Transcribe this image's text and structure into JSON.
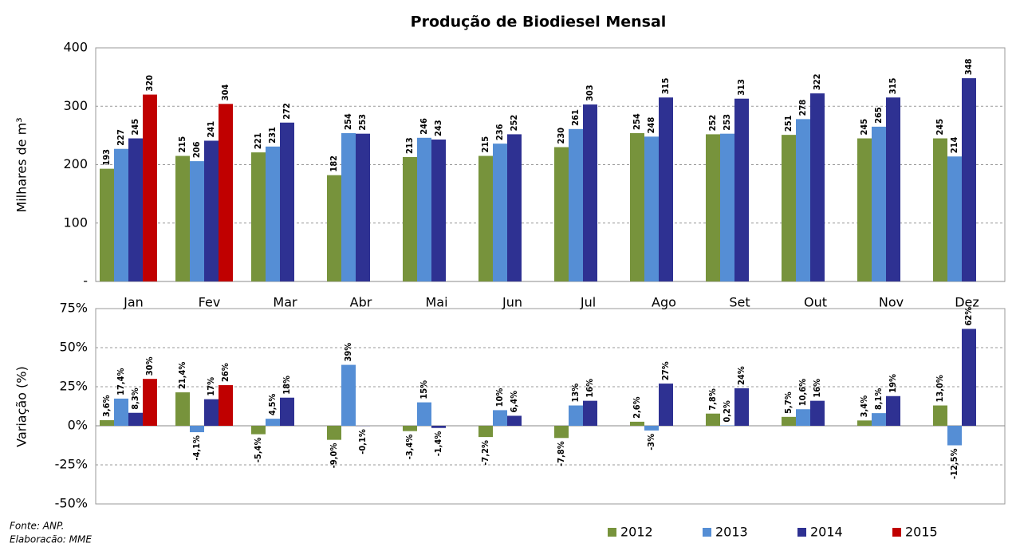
{
  "chart_data": [
    {
      "type": "bar",
      "title": "Produção de Biodiesel Mensal",
      "y_label": "Milhares de m³",
      "categories": [
        "Jan",
        "Fev",
        "Mar",
        "Abr",
        "Mai",
        "Jun",
        "Jul",
        "Ago",
        "Set",
        "Out",
        "Nov",
        "Dez"
      ],
      "series": [
        {
          "name": "2012",
          "color": "#77933c",
          "values": [
            193,
            215,
            221,
            182,
            213,
            215,
            230,
            254,
            252,
            251,
            245,
            245
          ]
        },
        {
          "name": "2013",
          "color": "#558ed5",
          "values": [
            227,
            206,
            231,
            254,
            246,
            236,
            261,
            248,
            253,
            278,
            265,
            214
          ]
        },
        {
          "name": "2014",
          "color": "#2e3192",
          "values": [
            245,
            241,
            272,
            253,
            243,
            252,
            303,
            315,
            313,
            322,
            315,
            348
          ]
        },
        {
          "name": "2015",
          "color": "#c00000",
          "values": [
            320,
            304,
            null,
            null,
            null,
            null,
            null,
            null,
            null,
            null,
            null,
            null
          ]
        }
      ],
      "ylim": [
        0,
        400
      ],
      "yticks": [
        {
          "value": 0,
          "label": "-"
        },
        100,
        200,
        300,
        400
      ],
      "grid": true,
      "legend": "bottom-right",
      "notes": [
        "Fonte: ANP.",
        "Elaboração: MME"
      ]
    },
    {
      "type": "bar",
      "y_label": "Variação (%)",
      "series": [
        {
          "color": "#77933c",
          "values": [
            3.6,
            21.4,
            -5.4,
            -9.0,
            -3.4,
            -7.2,
            -7.8,
            2.6,
            7.8,
            5.7,
            3.4,
            13.0
          ],
          "value_labels": [
            "3,6%",
            "21,4%",
            "-5,4%",
            "-9,0%",
            "-3,4%",
            "-7,2%",
            "-7,8%",
            "2,6%",
            "7,8%",
            "5,7%",
            "3,4%",
            "13,0%"
          ]
        },
        {
          "color": "#558ed5",
          "values": [
            17.4,
            -4.1,
            4.5,
            39,
            15,
            10,
            13,
            -3,
            0.2,
            10.6,
            8.1,
            -12.5
          ],
          "value_labels": [
            "17,4%",
            "-4,1%",
            "4,5%",
            "39%",
            "15%",
            "10%",
            "13%",
            "-3%",
            "0,2%",
            "10,6%",
            "8,1%",
            "-12,5%"
          ]
        },
        {
          "color": "#2e3192",
          "values": [
            8.3,
            17,
            18,
            -0.1,
            -1.4,
            6.4,
            16,
            27,
            24,
            16,
            19,
            62
          ],
          "value_labels": [
            "8,3%",
            "17%",
            "18%",
            "-0,1%",
            "-1,4%",
            "6,4%",
            "16%",
            "27%",
            "24%",
            "16%",
            "19%",
            "62%"
          ]
        },
        {
          "color": "#c00000",
          "values": [
            30,
            26,
            null,
            null,
            null,
            null,
            null,
            null,
            null,
            null,
            null,
            null
          ],
          "value_labels": [
            "30%",
            "26%",
            null,
            null,
            null,
            null,
            null,
            null,
            null,
            null,
            null,
            null
          ]
        }
      ],
      "ylim": [
        -50,
        75
      ],
      "yticks": [
        {
          "value": -50,
          "label": "-50%"
        },
        {
          "value": -25,
          "label": "-25%"
        },
        {
          "value": 0,
          "label": "0%"
        },
        {
          "value": 25,
          "label": "25%"
        },
        {
          "value": 50,
          "label": "50%"
        },
        {
          "value": 75,
          "label": "75%"
        }
      ],
      "grid": true
    }
  ]
}
